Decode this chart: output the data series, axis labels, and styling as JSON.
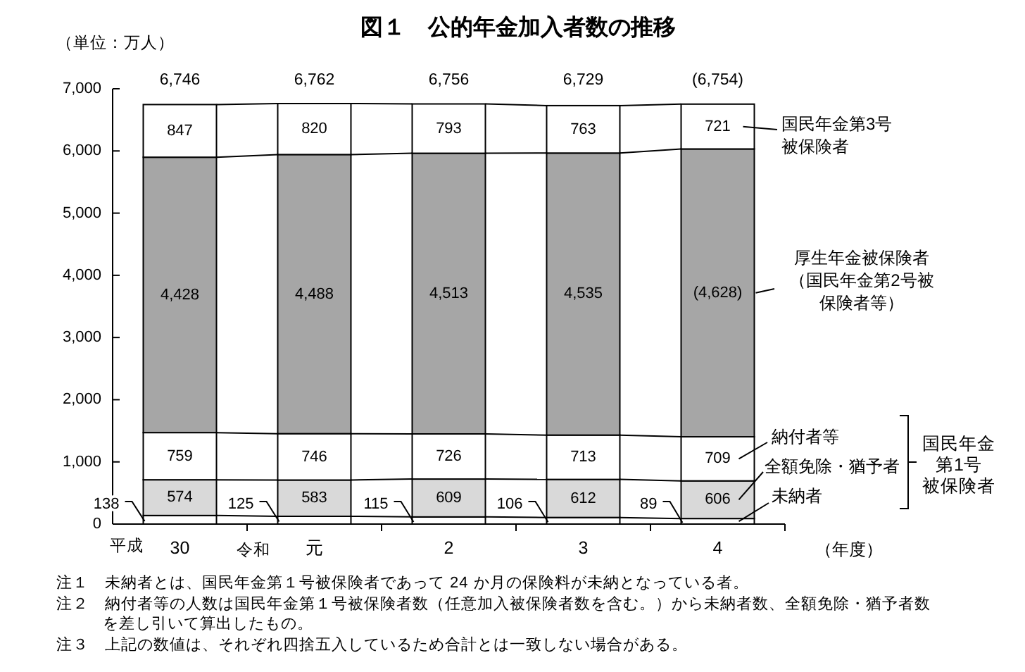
{
  "chart_data": {
    "type": "bar",
    "title": "図１　公的年金加入者数の推移",
    "ylabel": "（単位：万人）",
    "xlabel": "（年度）",
    "categories": [
      "30",
      "元",
      "2",
      "3",
      "4"
    ],
    "stacked": true,
    "legend": "right",
    "series": [
      {
        "name": "未納者",
        "color": "#ffffff",
        "values": [
          138,
          125,
          115,
          106,
          89
        ],
        "value_labels": [
          "138",
          "125",
          "115",
          "106",
          "89"
        ]
      },
      {
        "name": "全額免除・猶予者",
        "color": "#d9d9d9",
        "values": [
          574,
          583,
          609,
          612,
          606
        ],
        "value_labels": [
          "574",
          "583",
          "609",
          "612",
          "606"
        ]
      },
      {
        "name": "納付者等",
        "color": "#ffffff",
        "values": [
          759,
          746,
          726,
          713,
          709
        ],
        "value_labels": [
          "759",
          "746",
          "726",
          "713",
          "709"
        ]
      },
      {
        "name": "厚生年金被保険者（国民年金第2号被保険者等）",
        "color": "#a6a6a6",
        "values": [
          4428,
          4488,
          4513,
          4535,
          4628
        ],
        "value_labels": [
          "4,428",
          "4,488",
          "4,513",
          "4,535",
          "(4,628)"
        ]
      },
      {
        "name": "国民年金第3号被保険者",
        "color": "#ffffff",
        "values": [
          847,
          820,
          793,
          763,
          721
        ],
        "value_labels": [
          "847",
          "820",
          "793",
          "763",
          "721"
        ]
      }
    ],
    "totals": [
      "6,746",
      "6,762",
      "6,756",
      "6,729",
      "(6,754)"
    ],
    "ylim": [
      0,
      7000
    ],
    "yticks": [
      0,
      {
        "value": 1000,
        "label": "1,000"
      },
      {
        "value": 2000,
        "label": "2,000"
      },
      {
        "value": 3000,
        "label": "3,000"
      },
      {
        "value": 4000,
        "label": "4,000"
      },
      {
        "value": 5000,
        "label": "5,000"
      },
      {
        "value": 6000,
        "label": "6,000"
      },
      {
        "value": 7000,
        "label": "7,000"
      }
    ],
    "annotations": [
      "平成",
      "令和",
      "国民年金第1号被保険者",
      "注１　未納者とは、国民年金第１号被保険者であって 24 か月の保険料が未納となっている者。",
      "注２　納付者等の人数は国民年金第１号被保険者数（任意加入被保険者数を含む。）から未納者数、全額免除・猶予者数を差し引いて算出したもの。",
      "注３　上記の数値は、それぞれ四捨五入しているため合計とは一致しない場合がある。"
    ]
  }
}
